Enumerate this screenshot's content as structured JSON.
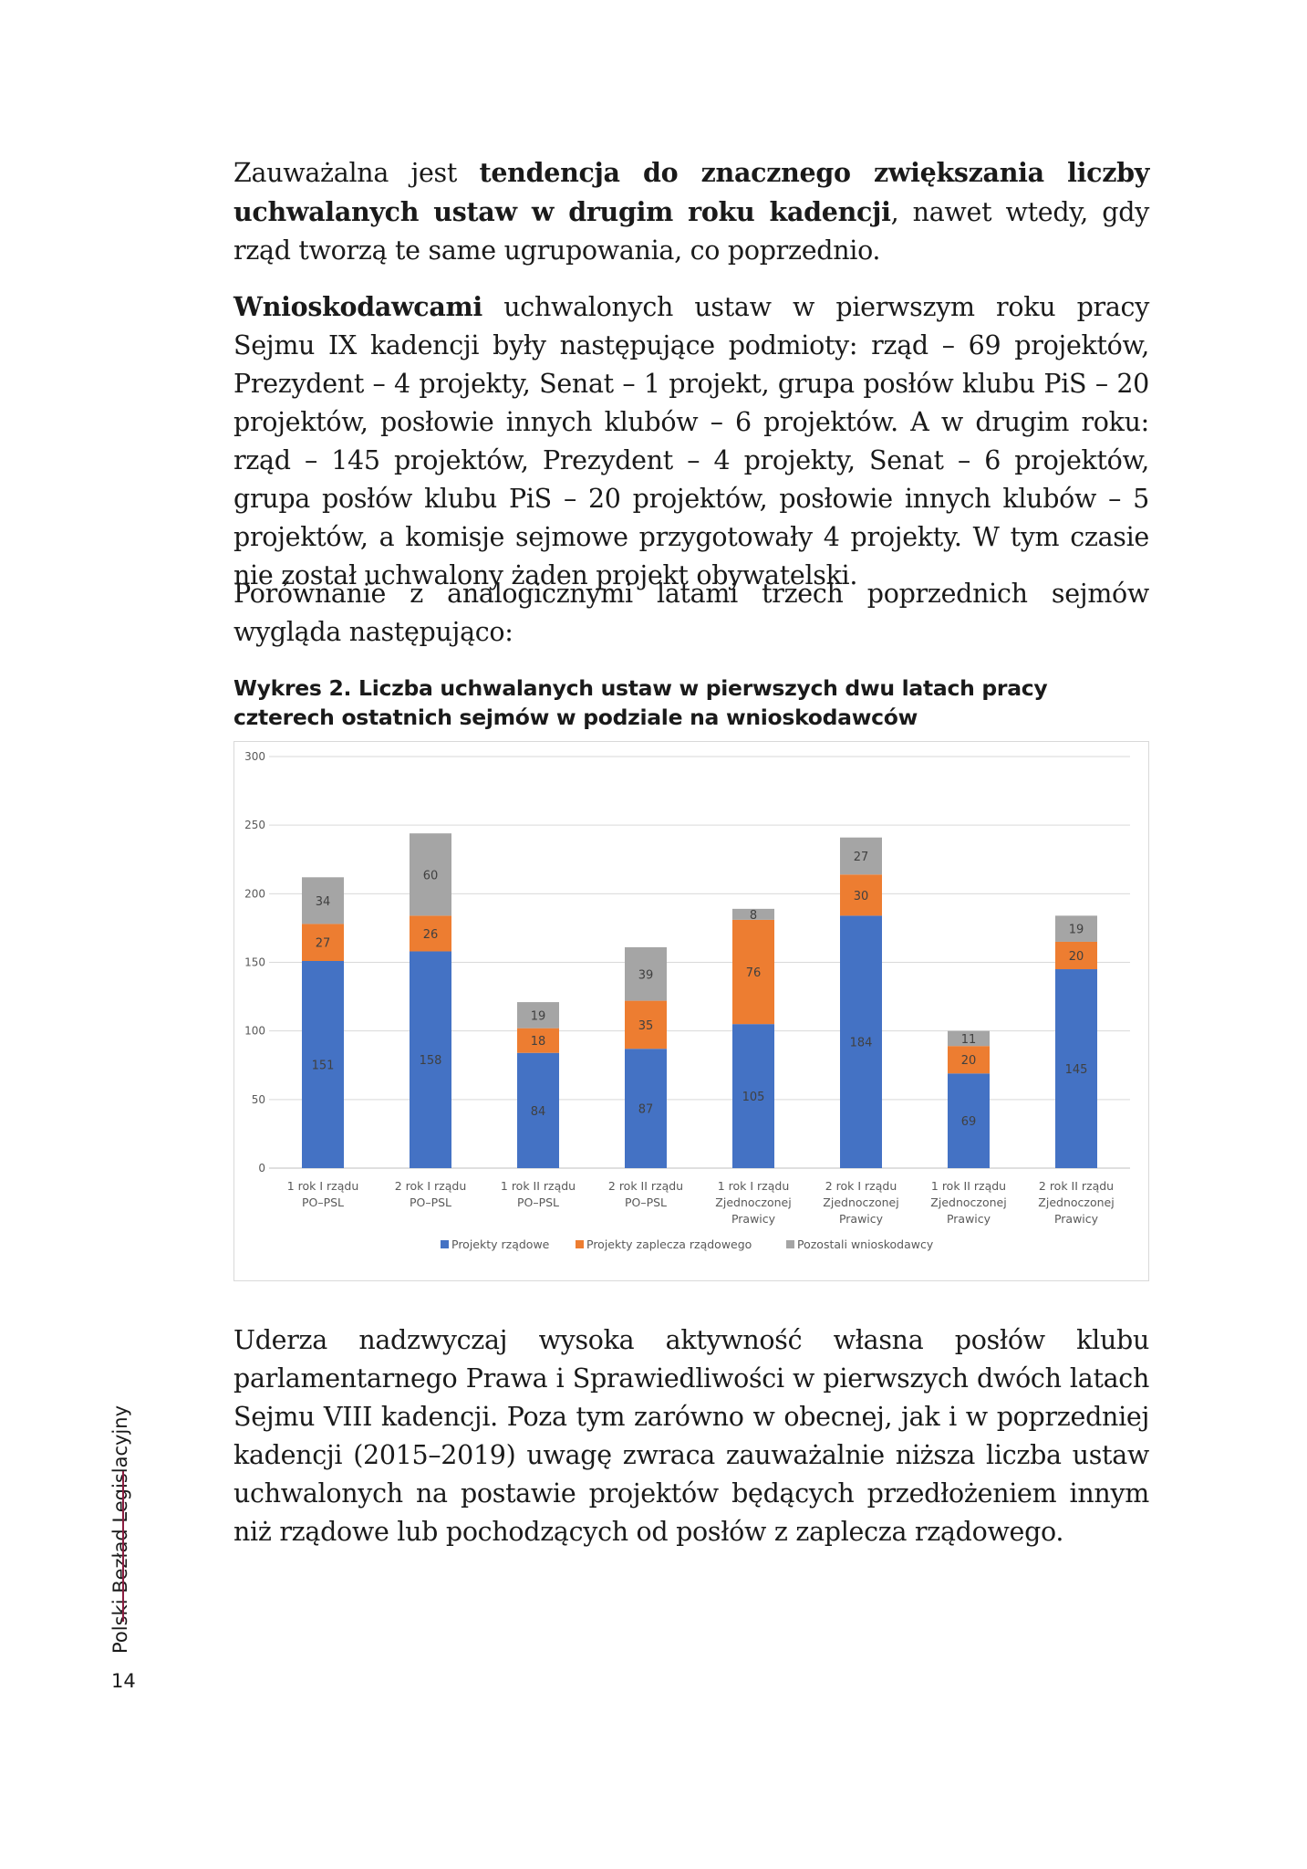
{
  "paragraphs": {
    "p1": {
      "a": "Zauważalna jest ",
      "b": "tendencja do znacznego zwiększania liczby uchwalanych ustaw w drugim roku kadencji",
      "c": ", nawet wtedy, gdy rząd tworzą te same ugrupowania, co poprzednio."
    },
    "p2": {
      "a": "Wnioskodawcami",
      "b": " uchwalonych ustaw w pierwszym roku pracy Sejmu IX kadencji były następujące podmioty: rząd – 69 projektów, Prezydent – 4 projekty, Senat – 1 projekt, grupa posłów klubu PiS – 20 projektów, posłowie innych klubów – 6 projektów. A w drugim roku: rząd – 145 projektów, Prezydent – 4 projekty, Senat – 6 projektów, grupa posłów klubu PiS – 20 projektów, posłowie innych klubów – 5 projektów, a komisje sejmowe przygotowały 4 projekty. W tym czasie nie został uchwalony żaden projekt obywatelski."
    },
    "p3": "Porównanie z analogicznymi latami trzech poprzednich sejmów wygląda następująco:",
    "p4": "Uderza nadzwyczaj wysoka aktywność własna posłów klubu parlamentarnego Prawa i Sprawiedliwości w pierwszych dwóch latach Sejmu VIII kadencji. Poza tym zarówno w obecnej, jak i w poprzedniej kadencji (2015–2019) uwagę zwraca zauważalnie niższa liczba ustaw uchwalonych na postawie projektów będących przedłożeniem innym niż rządowe lub pochodzących od posłów z zaplecza rządowego."
  },
  "caption": "Wykres 2. Liczba uchwalanych ustaw w pierwszych dwu latach pracy czterech ostatnich sejmów w podziale na wnioskodawców",
  "chart_data": {
    "type": "bar",
    "stacked": true,
    "categories": [
      [
        "1 rok I rządu",
        "PO–PSL"
      ],
      [
        "2 rok I rządu",
        "PO–PSL"
      ],
      [
        "1 rok II rządu",
        "PO–PSL"
      ],
      [
        "2 rok II rządu",
        "PO–PSL"
      ],
      [
        "1 rok I rządu",
        "Zjednoczonej",
        "Prawicy"
      ],
      [
        "2 rok I rządu",
        "Zjednoczonej",
        "Prawicy"
      ],
      [
        "1 rok II rządu",
        "Zjednoczonej",
        "Prawicy"
      ],
      [
        "2 rok II rządu",
        "Zjednoczonej",
        "Prawicy"
      ]
    ],
    "series": [
      {
        "name": "Projekty rządowe",
        "color": "#4472c4",
        "values": [
          151,
          158,
          84,
          87,
          105,
          184,
          69,
          145
        ]
      },
      {
        "name": "Projekty zaplecza rządowego",
        "color": "#ed7d31",
        "values": [
          27,
          26,
          18,
          35,
          76,
          30,
          20,
          20
        ]
      },
      {
        "name": "Pozostali wnioskodawcy",
        "color": "#a5a5a5",
        "values": [
          34,
          60,
          19,
          39,
          8,
          27,
          11,
          19
        ]
      }
    ],
    "ylim": [
      0,
      300
    ],
    "yticks": [
      0,
      50,
      100,
      150,
      200,
      250,
      300
    ],
    "grid": true,
    "legend": "bottom"
  },
  "sidebar": {
    "label": "Polski Bezład Legislacyjny"
  },
  "page_number": "14"
}
